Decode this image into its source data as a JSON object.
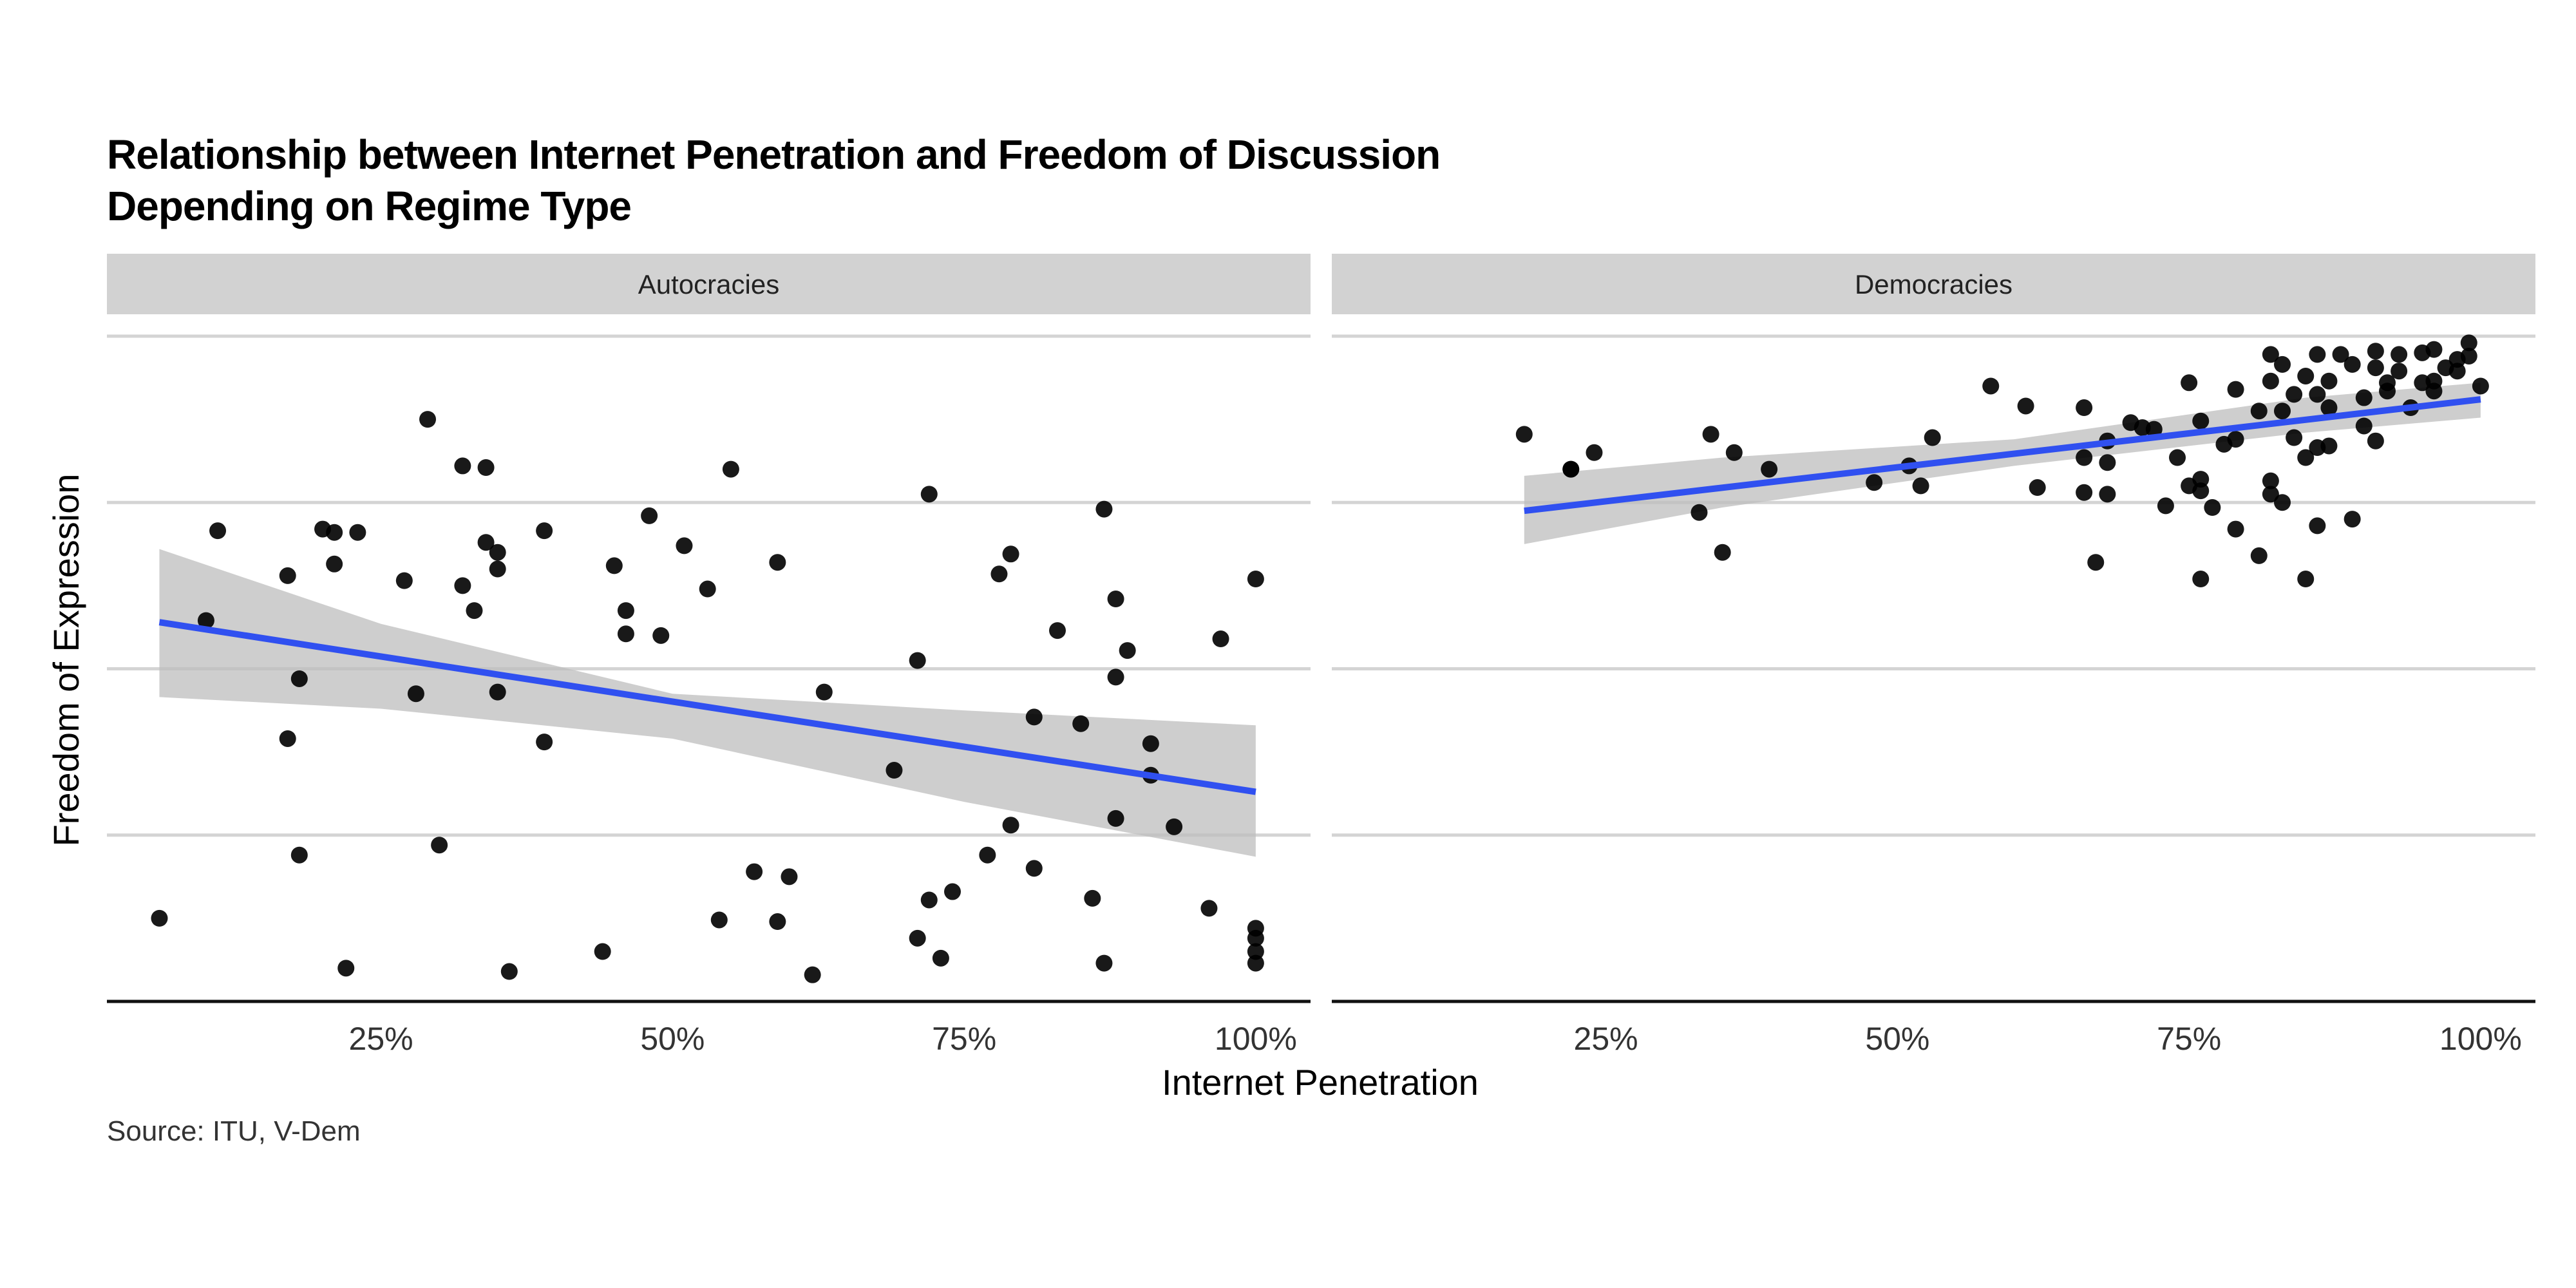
{
  "chart_data": {
    "type": "scatter",
    "title_lines": [
      "Relationship between Internet Penetration and Freedom of Discussion",
      "Depending on Regime Type"
    ],
    "xlabel": "Internet Penetration",
    "ylabel": "Freedom of Expression",
    "caption": "Source: ITU, V-Dem",
    "x_ticks": [
      "25%",
      "50%",
      "75%",
      "100%"
    ],
    "x_tick_values": [
      0.25,
      0.5,
      0.75,
      1.0
    ],
    "xlim": [
      0.015,
      1.047
    ],
    "ylim": [
      0,
      0.4
    ],
    "y_gridlines": [
      0,
      0.1,
      0.2,
      0.3,
      0.4
    ],
    "y_tick_labels_shown": false,
    "grid": "horizontal major only",
    "colors": {
      "points": "#000000",
      "fit_line": "#3050f0",
      "ribbon": "#bdbdbd",
      "strip": "#d2d2d2",
      "grid": "#d4d4d4"
    },
    "panels": [
      {
        "label": "Autocracies",
        "trend": {
          "x": [
            0.06,
            1.0
          ],
          "y": [
            0.228,
            0.126
          ]
        },
        "ribbon": {
          "x": [
            0.06,
            0.25,
            0.5,
            0.75,
            1.0
          ],
          "lower": [
            0.183,
            0.176,
            0.158,
            0.12,
            0.087
          ],
          "upper": [
            0.272,
            0.227,
            0.185,
            0.175,
            0.166
          ]
        },
        "points": [
          [
            0.06,
            0.05
          ],
          [
            0.1,
            0.229
          ],
          [
            0.11,
            0.283
          ],
          [
            0.17,
            0.256
          ],
          [
            0.17,
            0.158
          ],
          [
            0.18,
            0.194
          ],
          [
            0.18,
            0.088
          ],
          [
            0.2,
            0.284
          ],
          [
            0.21,
            0.282
          ],
          [
            0.21,
            0.263
          ],
          [
            0.22,
            0.02
          ],
          [
            0.23,
            0.282
          ],
          [
            0.27,
            0.253
          ],
          [
            0.28,
            0.185
          ],
          [
            0.29,
            0.35
          ],
          [
            0.3,
            0.094
          ],
          [
            0.32,
            0.322
          ],
          [
            0.32,
            0.25
          ],
          [
            0.33,
            0.235
          ],
          [
            0.34,
            0.321
          ],
          [
            0.34,
            0.276
          ],
          [
            0.35,
            0.27
          ],
          [
            0.35,
            0.26
          ],
          [
            0.35,
            0.186
          ],
          [
            0.36,
            0.018
          ],
          [
            0.39,
            0.283
          ],
          [
            0.39,
            0.156
          ],
          [
            0.44,
            0.03
          ],
          [
            0.45,
            0.262
          ],
          [
            0.46,
            0.235
          ],
          [
            0.46,
            0.221
          ],
          [
            0.48,
            0.292
          ],
          [
            0.49,
            0.22
          ],
          [
            0.51,
            0.274
          ],
          [
            0.53,
            0.248
          ],
          [
            0.54,
            0.049
          ],
          [
            0.55,
            0.32
          ],
          [
            0.57,
            0.078
          ],
          [
            0.59,
            0.264
          ],
          [
            0.59,
            0.048
          ],
          [
            0.6,
            0.075
          ],
          [
            0.62,
            0.016
          ],
          [
            0.63,
            0.186
          ],
          [
            0.69,
            0.139
          ],
          [
            0.71,
            0.205
          ],
          [
            0.71,
            0.038
          ],
          [
            0.72,
            0.305
          ],
          [
            0.72,
            0.061
          ],
          [
            0.73,
            0.026
          ],
          [
            0.74,
            0.066
          ],
          [
            0.77,
            0.088
          ],
          [
            0.78,
            0.257
          ],
          [
            0.79,
            0.269
          ],
          [
            0.79,
            0.106
          ],
          [
            0.81,
            0.171
          ],
          [
            0.81,
            0.08
          ],
          [
            0.83,
            0.223
          ],
          [
            0.85,
            0.167
          ],
          [
            0.86,
            0.062
          ],
          [
            0.87,
            0.296
          ],
          [
            0.87,
            0.023
          ],
          [
            0.88,
            0.242
          ],
          [
            0.88,
            0.195
          ],
          [
            0.88,
            0.11
          ],
          [
            0.89,
            0.211
          ],
          [
            0.91,
            0.155
          ],
          [
            0.91,
            0.136
          ],
          [
            0.93,
            0.105
          ],
          [
            0.96,
            0.056
          ],
          [
            0.97,
            0.218
          ],
          [
            1.0,
            0.254
          ],
          [
            1.0,
            0.044
          ],
          [
            1.0,
            0.038
          ],
          [
            1.0,
            0.03
          ],
          [
            1.0,
            0.023
          ]
        ]
      },
      {
        "label": "Democracies",
        "trend": {
          "x": [
            0.18,
            1.0
          ],
          "y": [
            0.295,
            0.362
          ]
        },
        "ribbon": {
          "x": [
            0.18,
            0.35,
            0.6,
            0.85,
            1.0
          ],
          "lower": [
            0.275,
            0.297,
            0.322,
            0.342,
            0.351
          ],
          "upper": [
            0.316,
            0.327,
            0.338,
            0.363,
            0.372
          ]
        },
        "points": [
          [
            0.18,
            0.341
          ],
          [
            0.22,
            0.32
          ],
          [
            0.22,
            0.32
          ],
          [
            0.24,
            0.33
          ],
          [
            0.33,
            0.294
          ],
          [
            0.34,
            0.341
          ],
          [
            0.35,
            0.27
          ],
          [
            0.36,
            0.33
          ],
          [
            0.39,
            0.32
          ],
          [
            0.48,
            0.312
          ],
          [
            0.51,
            0.322
          ],
          [
            0.52,
            0.31
          ],
          [
            0.53,
            0.339
          ],
          [
            0.58,
            0.37
          ],
          [
            0.61,
            0.358
          ],
          [
            0.62,
            0.309
          ],
          [
            0.66,
            0.357
          ],
          [
            0.66,
            0.327
          ],
          [
            0.66,
            0.306
          ],
          [
            0.67,
            0.264
          ],
          [
            0.68,
            0.337
          ],
          [
            0.68,
            0.324
          ],
          [
            0.68,
            0.305
          ],
          [
            0.7,
            0.348
          ],
          [
            0.71,
            0.345
          ],
          [
            0.72,
            0.344
          ],
          [
            0.73,
            0.298
          ],
          [
            0.74,
            0.327
          ],
          [
            0.75,
            0.372
          ],
          [
            0.75,
            0.31
          ],
          [
            0.76,
            0.349
          ],
          [
            0.76,
            0.314
          ],
          [
            0.76,
            0.307
          ],
          [
            0.76,
            0.254
          ],
          [
            0.77,
            0.297
          ],
          [
            0.78,
            0.335
          ],
          [
            0.79,
            0.368
          ],
          [
            0.79,
            0.338
          ],
          [
            0.79,
            0.284
          ],
          [
            0.81,
            0.355
          ],
          [
            0.81,
            0.268
          ],
          [
            0.82,
            0.389
          ],
          [
            0.82,
            0.373
          ],
          [
            0.82,
            0.313
          ],
          [
            0.82,
            0.305
          ],
          [
            0.83,
            0.383
          ],
          [
            0.83,
            0.355
          ],
          [
            0.83,
            0.3
          ],
          [
            0.84,
            0.365
          ],
          [
            0.84,
            0.339
          ],
          [
            0.85,
            0.376
          ],
          [
            0.85,
            0.327
          ],
          [
            0.85,
            0.254
          ],
          [
            0.86,
            0.389
          ],
          [
            0.86,
            0.365
          ],
          [
            0.86,
            0.333
          ],
          [
            0.86,
            0.286
          ],
          [
            0.87,
            0.373
          ],
          [
            0.87,
            0.357
          ],
          [
            0.87,
            0.334
          ],
          [
            0.88,
            0.389
          ],
          [
            0.89,
            0.383
          ],
          [
            0.89,
            0.29
          ],
          [
            0.9,
            0.363
          ],
          [
            0.9,
            0.346
          ],
          [
            0.91,
            0.391
          ],
          [
            0.91,
            0.381
          ],
          [
            0.91,
            0.337
          ],
          [
            0.92,
            0.372
          ],
          [
            0.92,
            0.367
          ],
          [
            0.93,
            0.389
          ],
          [
            0.93,
            0.379
          ],
          [
            0.94,
            0.357
          ],
          [
            0.95,
            0.39
          ],
          [
            0.95,
            0.372
          ],
          [
            0.96,
            0.392
          ],
          [
            0.96,
            0.373
          ],
          [
            0.96,
            0.367
          ],
          [
            0.97,
            0.381
          ],
          [
            0.98,
            0.386
          ],
          [
            0.98,
            0.379
          ],
          [
            0.99,
            0.396
          ],
          [
            0.99,
            0.388
          ],
          [
            1.0,
            0.37
          ]
        ]
      }
    ]
  }
}
